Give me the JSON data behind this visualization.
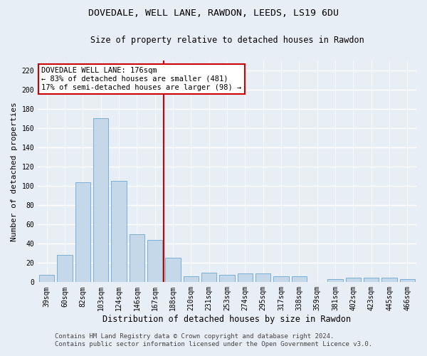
{
  "title": "DOVEDALE, WELL LANE, RAWDON, LEEDS, LS19 6DU",
  "subtitle": "Size of property relative to detached houses in Rawdon",
  "xlabel": "Distribution of detached houses by size in Rawdon",
  "ylabel": "Number of detached properties",
  "categories": [
    "39sqm",
    "60sqm",
    "82sqm",
    "103sqm",
    "124sqm",
    "146sqm",
    "167sqm",
    "188sqm",
    "210sqm",
    "231sqm",
    "253sqm",
    "274sqm",
    "295sqm",
    "317sqm",
    "338sqm",
    "359sqm",
    "381sqm",
    "402sqm",
    "423sqm",
    "445sqm",
    "466sqm"
  ],
  "values": [
    8,
    28,
    104,
    170,
    105,
    50,
    44,
    25,
    6,
    10,
    8,
    9,
    9,
    6,
    6,
    0,
    3,
    5,
    5,
    5,
    3
  ],
  "bar_color": "#c5d8ea",
  "bar_edge_color": "#7bafd4",
  "vline_color": "#cc0000",
  "vline_x_index": 7,
  "annotation_title": "DOVEDALE WELL LANE: 176sqm",
  "annotation_line1": "← 83% of detached houses are smaller (481)",
  "annotation_line2": "17% of semi-detached houses are larger (98) →",
  "ylim": [
    0,
    230
  ],
  "yticks": [
    0,
    20,
    40,
    60,
    80,
    100,
    120,
    140,
    160,
    180,
    200,
    220
  ],
  "footer1": "Contains HM Land Registry data © Crown copyright and database right 2024.",
  "footer2": "Contains public sector information licensed under the Open Government Licence v3.0.",
  "bg_color": "#e8eef5",
  "grid_color": "#ffffff",
  "title_fontsize": 9.5,
  "subtitle_fontsize": 8.5,
  "xlabel_fontsize": 8.5,
  "ylabel_fontsize": 8,
  "tick_fontsize": 7,
  "annotation_fontsize": 7.5,
  "footer_fontsize": 6.5
}
